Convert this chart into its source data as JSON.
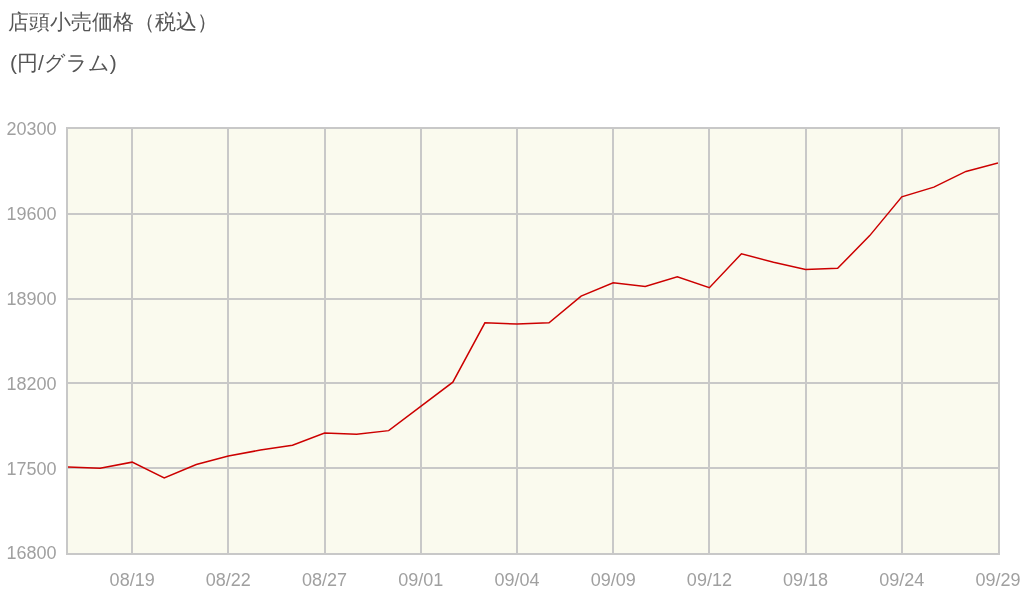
{
  "chart_data": {
    "type": "line",
    "title": "店頭小売価格（税込）",
    "subtitle": "(円/グラム)",
    "categories": [
      null,
      null,
      "08/19",
      null,
      null,
      "08/22",
      null,
      null,
      "08/27",
      null,
      null,
      "09/01",
      null,
      null,
      "09/04",
      null,
      null,
      "09/09",
      null,
      null,
      "09/12",
      null,
      null,
      "09/18",
      null,
      null,
      "09/24",
      null,
      null,
      "09/29"
    ],
    "series": [
      {
        "color": "#cc0000",
        "values": [
          17510,
          17500,
          17550,
          17420,
          17530,
          17600,
          17650,
          17690,
          17790,
          17780,
          17810,
          18010,
          18210,
          18700,
          18690,
          18700,
          18920,
          19030,
          19000,
          19080,
          18990,
          19270,
          19200,
          19140,
          19150,
          19420,
          19740,
          19820,
          19950,
          20020
        ]
      }
    ],
    "ylim": [
      16800,
      20300
    ],
    "yticks": [
      16800,
      17500,
      18200,
      18900,
      19600,
      20300
    ],
    "grid": true,
    "line_style": "solid"
  }
}
